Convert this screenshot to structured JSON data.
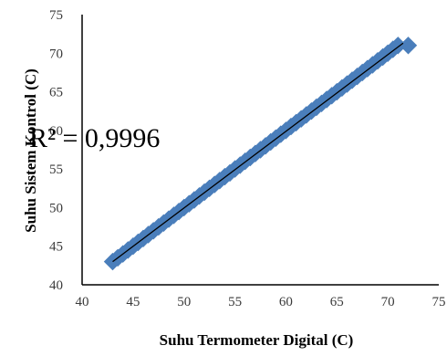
{
  "chart_data": {
    "type": "scatter",
    "title": "",
    "xlabel": "Suhu Termometer Digital (C)",
    "ylabel": "Suhu Sistem Kontrol (C)",
    "xlim": [
      40,
      75
    ],
    "ylim": [
      40,
      75
    ],
    "x_ticks": [
      40,
      45,
      50,
      55,
      60,
      65,
      70,
      75
    ],
    "y_ticks": [
      40,
      45,
      50,
      55,
      60,
      65,
      70,
      75
    ],
    "grid": false,
    "legend": "none",
    "annotation": "R² = 0,9996",
    "marker_color": "#4a7ebb",
    "trendline_color": "#000000",
    "trendline": {
      "x": [
        43,
        71.5
      ],
      "y": [
        43,
        71.3
      ]
    },
    "series": [
      {
        "x": [
          43,
          43.5,
          44,
          44.5,
          45,
          45.5,
          46,
          46.5,
          47,
          47.5,
          48,
          48.5,
          49,
          49.5,
          50,
          50.5,
          51,
          51.5,
          52,
          52.5,
          53,
          53.5,
          54,
          54.5,
          55,
          55.5,
          56,
          56.5,
          57,
          57.5,
          58,
          58.5,
          59,
          59.5,
          60,
          60.5,
          61,
          61.5,
          62,
          62.5,
          63,
          63.5,
          64,
          64.5,
          65,
          65.5,
          66,
          66.5,
          67,
          67.5,
          68,
          68.5,
          69,
          69.5,
          70,
          70.5,
          71,
          72
        ],
        "y": [
          43,
          43.5,
          44,
          44.5,
          45,
          45.5,
          46,
          46.5,
          47,
          47.5,
          48,
          48.5,
          49,
          49.5,
          50,
          50.5,
          51,
          51.5,
          52,
          52.5,
          53,
          53.5,
          54,
          54.5,
          55,
          55.5,
          56,
          56.5,
          57,
          57.5,
          58,
          58.5,
          59,
          59.5,
          60,
          60.5,
          61,
          61.5,
          62,
          62.5,
          63,
          63.5,
          64,
          64.5,
          65,
          65.5,
          66,
          66.5,
          67,
          67.5,
          68,
          68.5,
          69,
          69.5,
          70,
          70.5,
          71,
          71
        ]
      }
    ]
  }
}
